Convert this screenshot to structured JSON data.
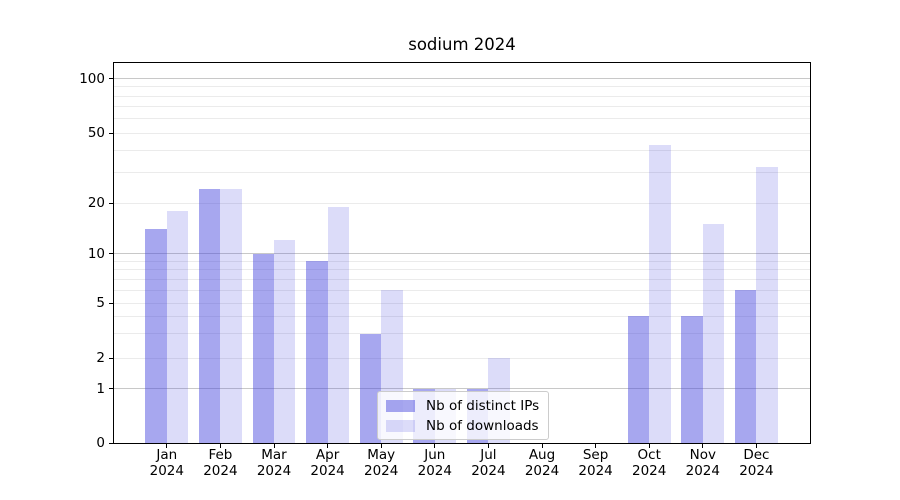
{
  "title": "sodium 2024",
  "chart_data": {
    "type": "bar",
    "title": "sodium 2024",
    "categories": [
      {
        "month": "Jan",
        "year": "2024"
      },
      {
        "month": "Feb",
        "year": "2024"
      },
      {
        "month": "Mar",
        "year": "2024"
      },
      {
        "month": "Apr",
        "year": "2024"
      },
      {
        "month": "May",
        "year": "2024"
      },
      {
        "month": "Jun",
        "year": "2024"
      },
      {
        "month": "Jul",
        "year": "2024"
      },
      {
        "month": "Aug",
        "year": "2024"
      },
      {
        "month": "Sep",
        "year": "2024"
      },
      {
        "month": "Oct",
        "year": "2024"
      },
      {
        "month": "Nov",
        "year": "2024"
      },
      {
        "month": "Dec",
        "year": "2024"
      }
    ],
    "series": [
      {
        "name": "Nb of distinct IPs",
        "color": "rgba(68,68,221,0.47)",
        "values": [
          14,
          24,
          10,
          9,
          3,
          1,
          1,
          0,
          0,
          4,
          4,
          6
        ]
      },
      {
        "name": "Nb of downloads",
        "color": "rgba(68,68,221,0.19)",
        "values": [
          18,
          24,
          12,
          19,
          6,
          1,
          2,
          0,
          0,
          43,
          15,
          32
        ]
      }
    ],
    "y_axis": {
      "scale": "symlog",
      "ticks": [
        0,
        1,
        2,
        5,
        10,
        20,
        50,
        100
      ],
      "major_gridlines": [
        1,
        10,
        100
      ],
      "minor_gridlines": [
        2,
        3,
        4,
        5,
        6,
        7,
        8,
        9,
        20,
        30,
        40,
        50,
        60,
        70,
        80,
        90
      ],
      "ylim": [
        0,
        124
      ]
    },
    "legend_position": "lower center",
    "grid": true
  }
}
